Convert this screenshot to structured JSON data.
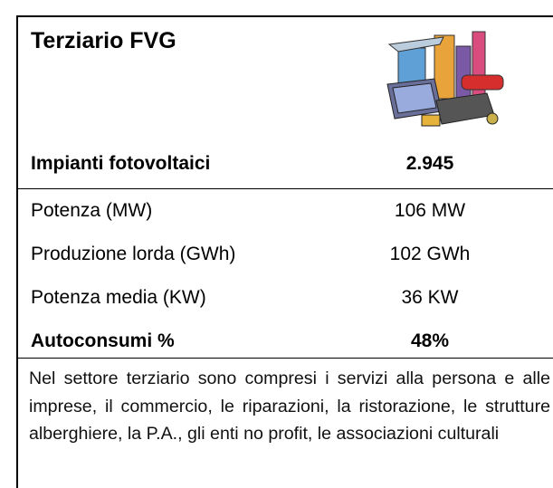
{
  "header": {
    "title": "Terziario FVG"
  },
  "table": {
    "rows": [
      [
        "Impianti fotovoltaici",
        "2.945"
      ],
      [
        "Potenza (MW)",
        "106 MW"
      ],
      [
        "Produzione lorda (GWh)",
        "102 GWh"
      ],
      [
        "Potenza media (KW)",
        "36 KW"
      ],
      [
        "Autoconsumi %",
        "48%"
      ]
    ]
  },
  "note": "Nel settore terziario sono compresi i servizi alla persona e alle imprese, il commercio, le riparazioni, la ristorazione, le strutture alberghiere, la P.A., gli enti no profit, le associazioni culturali"
}
